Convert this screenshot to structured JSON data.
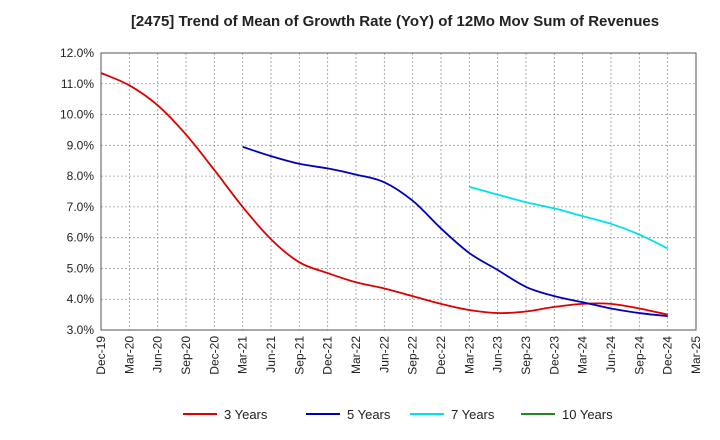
{
  "chart_data": {
    "type": "line",
    "title": "[2475]  Trend of Mean of Growth Rate (YoY) of 12Mo Mov Sum of Revenues",
    "xlabel": "",
    "ylabel": "",
    "ylim": [
      3.0,
      12.0
    ],
    "y_ticks": [
      "3.0%",
      "4.0%",
      "5.0%",
      "6.0%",
      "7.0%",
      "8.0%",
      "9.0%",
      "10.0%",
      "11.0%",
      "12.0%"
    ],
    "x_ticks": [
      "Dec-19",
      "Mar-20",
      "Jun-20",
      "Sep-20",
      "Dec-20",
      "Mar-21",
      "Jun-21",
      "Sep-21",
      "Dec-21",
      "Mar-22",
      "Jun-22",
      "Sep-22",
      "Dec-22",
      "Mar-23",
      "Jun-23",
      "Sep-23",
      "Dec-23",
      "Mar-24",
      "Jun-24",
      "Sep-24",
      "Dec-24",
      "Mar-25"
    ],
    "grid": true,
    "legend_position": "bottom",
    "series": [
      {
        "name": "3 Years",
        "color": "#dd0000",
        "x": [
          0,
          1,
          2,
          3,
          4,
          5,
          6,
          7,
          8,
          9,
          10,
          11,
          12,
          13,
          14,
          15,
          16,
          17,
          18,
          19,
          20
        ],
        "values": [
          11.35,
          10.95,
          10.3,
          9.35,
          8.2,
          7.0,
          5.95,
          5.2,
          4.85,
          4.55,
          4.35,
          4.1,
          3.85,
          3.65,
          3.55,
          3.6,
          3.75,
          3.85,
          3.85,
          3.7,
          3.5
        ]
      },
      {
        "name": "5 Years",
        "color": "#0000bb",
        "x": [
          5,
          6,
          7,
          8,
          9,
          10,
          11,
          12,
          13,
          14,
          15,
          16,
          17,
          18,
          19,
          20
        ],
        "values": [
          8.95,
          8.65,
          8.4,
          8.25,
          8.05,
          7.8,
          7.2,
          6.3,
          5.5,
          4.95,
          4.4,
          4.1,
          3.9,
          3.7,
          3.55,
          3.45
        ]
      },
      {
        "name": "7 Years",
        "color": "#00e0ee",
        "x": [
          13,
          14,
          15,
          16,
          17,
          18,
          19,
          20
        ],
        "values": [
          7.65,
          7.4,
          7.15,
          6.95,
          6.7,
          6.45,
          6.1,
          5.65
        ]
      },
      {
        "name": "10 Years",
        "color": "#228822",
        "x": [],
        "values": []
      }
    ]
  }
}
